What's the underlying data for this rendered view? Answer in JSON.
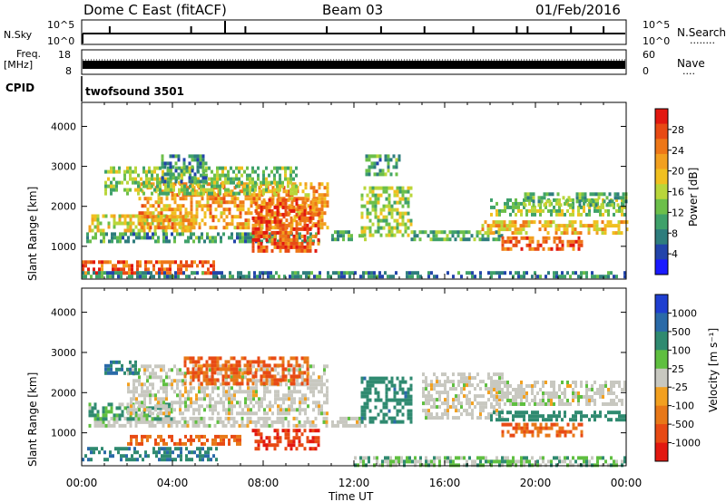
{
  "header": {
    "station": "Dome C East (fitACF)",
    "beam": "Beam 03",
    "date": "01/Feb/2016"
  },
  "strip_nsky": {
    "left_label": "N.Sky",
    "left_ticks": [
      "10^5",
      "10^0"
    ],
    "right_ticks": [
      "10^5",
      "10^0"
    ],
    "right_label": "N.Search",
    "right_dots": "........"
  },
  "strip_freq": {
    "left_label_1": "Freq.",
    "left_label_2": "[MHz]",
    "left_ticks": [
      "18",
      "8"
    ],
    "right_ticks": [
      "60",
      "0"
    ],
    "right_label": "Nave",
    "right_dots": "...."
  },
  "cpid": {
    "label": "CPID",
    "program": "twofsound 3501"
  },
  "x_axis": {
    "title": "Time UT",
    "ticks": [
      "00:00",
      "04:00",
      "08:00",
      "12:00",
      "16:00",
      "20:00",
      "00:00"
    ]
  },
  "chart_data": [
    {
      "type": "heatmap",
      "title": "",
      "xlabel": "Time UT",
      "ylabel": "Slant Range [km]",
      "xlim": [
        0,
        24
      ],
      "ylim": [
        180,
        4600
      ],
      "yticks": [
        "1000",
        "2000",
        "3000",
        "4000"
      ],
      "colorbar": {
        "label": "Power [dB]",
        "ticks": [
          "4",
          "8",
          "12",
          "16",
          "20",
          "24",
          "28"
        ],
        "range": [
          0,
          32
        ],
        "colors": [
          "#1a1aff",
          "#2244aa",
          "#2e7d7d",
          "#3fa16a",
          "#6cbf4a",
          "#b9d63a",
          "#f0c020",
          "#f2a020",
          "#ee7718",
          "#e84a14",
          "#e21810"
        ]
      },
      "bands": [
        {
          "t0": 0.0,
          "t1": 6.0,
          "r0": 300,
          "r1": 650,
          "value": 26
        },
        {
          "t0": 0.3,
          "t1": 5.0,
          "r0": 1380,
          "r1": 1800,
          "value": 18
        },
        {
          "t0": 0.2,
          "t1": 10.5,
          "r0": 1150,
          "r1": 1350,
          "value": 10
        },
        {
          "t0": 2.5,
          "t1": 10.8,
          "r0": 1500,
          "r1": 2600,
          "value": 22
        },
        {
          "t0": 7.5,
          "t1": 10.5,
          "r0": 900,
          "r1": 2200,
          "value": 27
        },
        {
          "t0": 1.0,
          "t1": 9.5,
          "r0": 2300,
          "r1": 3000,
          "value": 14
        },
        {
          "t0": 3.5,
          "t1": 5.5,
          "r0": 2600,
          "r1": 3300,
          "value": 9
        },
        {
          "t0": 11.0,
          "t1": 12.5,
          "r0": 1200,
          "r1": 1400,
          "value": 12
        },
        {
          "t0": 12.3,
          "t1": 14.5,
          "r0": 1300,
          "r1": 2500,
          "value": 15
        },
        {
          "t0": 12.5,
          "t1": 14.0,
          "r0": 2800,
          "r1": 3300,
          "value": 10
        },
        {
          "t0": 14.5,
          "t1": 18.5,
          "r0": 1200,
          "r1": 1400,
          "value": 11
        },
        {
          "t0": 18.5,
          "t1": 22.0,
          "r0": 900,
          "r1": 1250,
          "value": 26
        },
        {
          "t0": 17.5,
          "t1": 24.0,
          "r0": 1300,
          "r1": 1650,
          "value": 20
        },
        {
          "t0": 18.0,
          "t1": 24.0,
          "r0": 1800,
          "r1": 2200,
          "value": 14
        },
        {
          "t0": 19.5,
          "t1": 24.0,
          "r0": 2050,
          "r1": 2350,
          "value": 12
        },
        {
          "t0": 0.0,
          "t1": 24.0,
          "r0": 200,
          "r1": 380,
          "value": 8
        }
      ]
    },
    {
      "type": "heatmap",
      "title": "",
      "xlabel": "Time UT",
      "ylabel": "Slant Range [km]",
      "xlim": [
        0,
        24
      ],
      "ylim": [
        180,
        4600
      ],
      "yticks": [
        "1000",
        "2000",
        "3000",
        "4000"
      ],
      "colorbar": {
        "label": "Velocity [m s⁻¹]",
        "ticks": [
          "1000",
          "500",
          "100",
          "25",
          "-25",
          "-100",
          "-500",
          "-1000"
        ],
        "colors": [
          "#1f3fd0",
          "#2a6aa8",
          "#2f8a70",
          "#5fbf40",
          "#c8c8c0",
          "#f2a020",
          "#e87818",
          "#e84a14",
          "#e21810"
        ]
      },
      "bands": [
        {
          "t0": 0.0,
          "t1": 6.0,
          "r0": 300,
          "r1": 650,
          "value": 250
        },
        {
          "t0": 2.0,
          "t1": 7.0,
          "r0": 700,
          "r1": 950,
          "value": -300
        },
        {
          "t0": 0.3,
          "t1": 10.8,
          "r0": 1150,
          "r1": 1400,
          "value": 0
        },
        {
          "t0": 0.3,
          "t1": 4.0,
          "r0": 1350,
          "r1": 1750,
          "value": 60
        },
        {
          "t0": 2.0,
          "t1": 10.8,
          "r0": 1500,
          "r1": 2700,
          "value": 0
        },
        {
          "t0": 4.5,
          "t1": 10.0,
          "r0": 2200,
          "r1": 2900,
          "value": -300
        },
        {
          "t0": 7.5,
          "t1": 10.5,
          "r0": 600,
          "r1": 1100,
          "value": -700
        },
        {
          "t0": 1.0,
          "t1": 2.5,
          "r0": 2500,
          "r1": 2800,
          "value": 300
        },
        {
          "t0": 11.0,
          "t1": 12.5,
          "r0": 1200,
          "r1": 1400,
          "value": 0
        },
        {
          "t0": 12.3,
          "t1": 14.5,
          "r0": 1300,
          "r1": 2400,
          "value": 200
        },
        {
          "t0": 15.0,
          "t1": 18.5,
          "r0": 1400,
          "r1": 2500,
          "value": 0
        },
        {
          "t0": 18.5,
          "t1": 22.0,
          "r0": 950,
          "r1": 1250,
          "value": -300
        },
        {
          "t0": 18.0,
          "t1": 24.0,
          "r0": 1300,
          "r1": 1550,
          "value": 150
        },
        {
          "t0": 18.0,
          "t1": 24.0,
          "r0": 1700,
          "r1": 2300,
          "value": 0
        },
        {
          "t0": 12.0,
          "t1": 24.0,
          "r0": 200,
          "r1": 420,
          "value": 40
        }
      ]
    }
  ]
}
